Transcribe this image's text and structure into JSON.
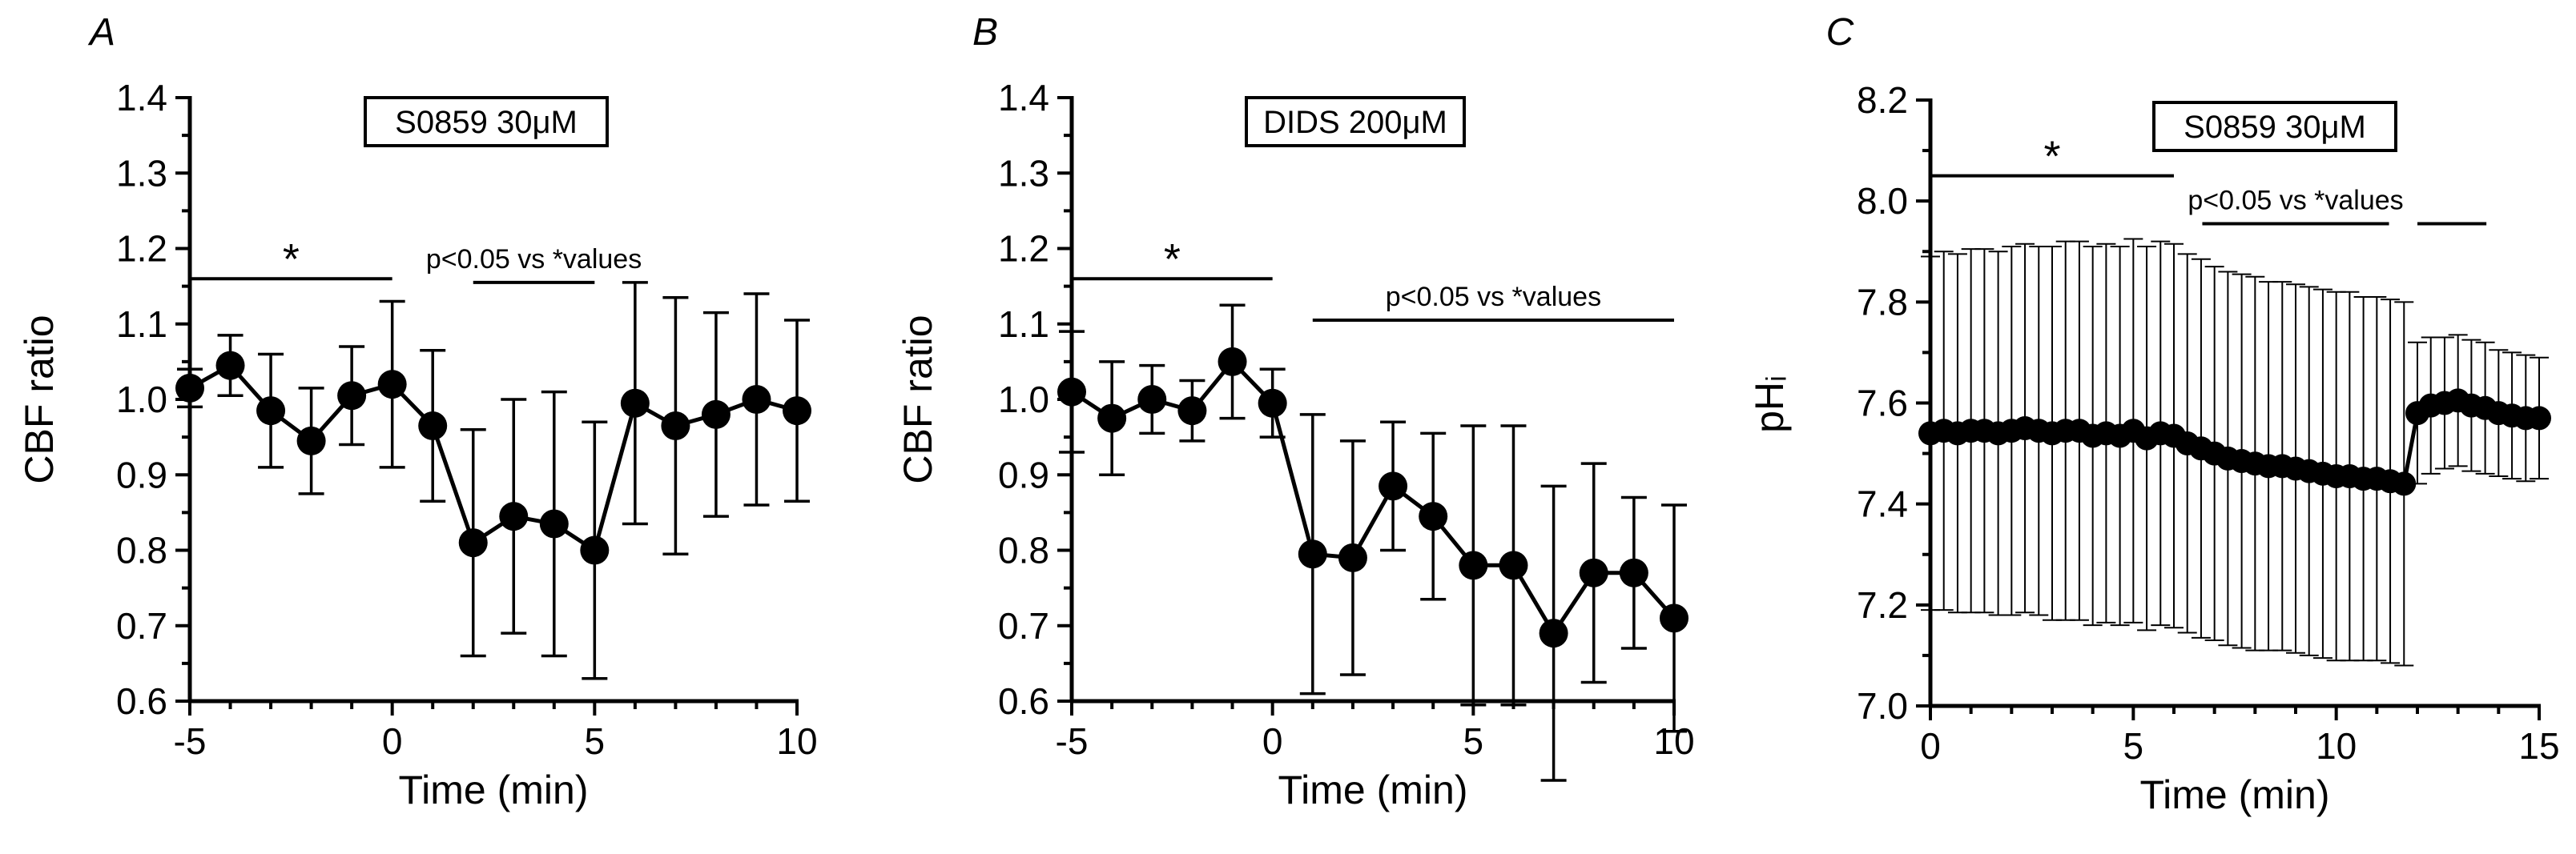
{
  "chart_data": [
    {
      "type": "line",
      "panel_label": "A",
      "title": "S0859 30μM",
      "xlabel": "Time (min)",
      "ylabel": "CBF ratio",
      "xlim": [
        -5,
        10
      ],
      "ylim": [
        0.6,
        1.4
      ],
      "xticks": [
        -5,
        0,
        5,
        10
      ],
      "xtick_labels": [
        "-5",
        "0",
        "5",
        "10"
      ],
      "yticks": [
        0.6,
        0.7,
        0.8,
        0.9,
        1.0,
        1.1,
        1.2,
        1.3,
        1.4
      ],
      "ytick_labels": [
        "0.6",
        "0.7",
        "0.8",
        "0.9",
        "1.0",
        "1.1",
        "1.2",
        "1.3",
        "1.4"
      ],
      "series": [
        {
          "name": "CBF ratio",
          "x": [
            -5,
            -4,
            -3,
            -2,
            -1,
            0,
            1,
            2,
            3,
            4,
            5,
            6,
            7,
            8,
            9,
            10
          ],
          "y": [
            1.015,
            1.045,
            0.985,
            0.945,
            1.005,
            1.02,
            0.965,
            0.81,
            0.845,
            0.835,
            0.8,
            0.995,
            0.965,
            0.98,
            1.0,
            0.985
          ],
          "err": [
            0.025,
            0.04,
            0.075,
            0.07,
            0.065,
            0.11,
            0.1,
            0.15,
            0.155,
            0.175,
            0.17,
            0.16,
            0.17,
            0.135,
            0.14,
            0.12
          ]
        }
      ],
      "annotations": [
        {
          "text": "*",
          "x_start": -5,
          "x_end": 0,
          "y": 1.16
        },
        {
          "text": "p<0.05 vs *values",
          "x_start": 2,
          "x_end": 5,
          "y": 1.155
        }
      ]
    },
    {
      "type": "line",
      "panel_label": "B",
      "title": "DIDS 200μM",
      "xlabel": "Time (min)",
      "ylabel": "CBF ratio",
      "xlim": [
        -5,
        10
      ],
      "ylim": [
        0.6,
        1.4
      ],
      "xticks": [
        -5,
        0,
        5,
        10
      ],
      "xtick_labels": [
        "-5",
        "0",
        "5",
        "10"
      ],
      "yticks": [
        0.6,
        0.7,
        0.8,
        0.9,
        1.0,
        1.1,
        1.2,
        1.3,
        1.4
      ],
      "ytick_labels": [
        "0.6",
        "0.7",
        "0.8",
        "0.9",
        "1.0",
        "1.1",
        "1.2",
        "1.3",
        "1.4"
      ],
      "series": [
        {
          "name": "CBF ratio",
          "x": [
            -5,
            -4,
            -3,
            -2,
            -1,
            0,
            1,
            2,
            3,
            4,
            5,
            6,
            7,
            8,
            9,
            10
          ],
          "y": [
            1.01,
            0.975,
            1.0,
            0.985,
            1.05,
            0.995,
            0.795,
            0.79,
            0.885,
            0.845,
            0.78,
            0.78,
            0.69,
            0.77,
            0.77,
            0.71
          ],
          "err": [
            0.08,
            0.075,
            0.045,
            0.04,
            0.075,
            0.045,
            0.185,
            0.155,
            0.085,
            0.11,
            0.185,
            0.185,
            0.195,
            0.145,
            0.1,
            0.15
          ]
        }
      ],
      "annotations": [
        {
          "text": "*",
          "x_start": -5,
          "x_end": 0,
          "y": 1.16
        },
        {
          "text": "p<0.05 vs *values",
          "x_start": 1,
          "x_end": 10,
          "y": 1.105
        }
      ]
    },
    {
      "type": "line",
      "panel_label": "C",
      "title": "S0859 30μM",
      "xlabel": "Time (min)",
      "ylabel": "pHᵢ",
      "xlim": [
        0,
        15
      ],
      "ylim": [
        7.0,
        8.2
      ],
      "xticks": [
        0,
        5,
        10,
        15
      ],
      "xtick_labels": [
        "0",
        "5",
        "10",
        "15"
      ],
      "yticks": [
        7.0,
        7.2,
        7.4,
        7.6,
        7.8,
        8.0,
        8.2
      ],
      "ytick_labels": [
        "7.0",
        "7.2",
        "7.4",
        "7.6",
        "7.8",
        "8.0",
        "8.2"
      ],
      "series": [
        {
          "name": "pHi",
          "x": [
            0,
            0.33,
            0.67,
            1,
            1.33,
            1.67,
            2,
            2.33,
            2.67,
            3,
            3.33,
            3.67,
            4,
            4.33,
            4.67,
            5,
            5.33,
            5.67,
            6,
            6.33,
            6.67,
            7,
            7.33,
            7.67,
            8,
            8.33,
            8.67,
            9,
            9.33,
            9.67,
            10,
            10.33,
            10.67,
            11,
            11.33,
            11.67,
            12,
            12.33,
            12.67,
            13,
            13.33,
            13.67,
            14,
            14.33,
            14.67,
            15
          ],
          "y": [
            7.54,
            7.545,
            7.54,
            7.545,
            7.545,
            7.54,
            7.545,
            7.55,
            7.545,
            7.54,
            7.545,
            7.545,
            7.535,
            7.54,
            7.535,
            7.545,
            7.53,
            7.54,
            7.535,
            7.52,
            7.51,
            7.5,
            7.49,
            7.485,
            7.48,
            7.475,
            7.475,
            7.47,
            7.465,
            7.46,
            7.455,
            7.455,
            7.45,
            7.45,
            7.445,
            7.44,
            7.58,
            7.595,
            7.6,
            7.605,
            7.595,
            7.59,
            7.58,
            7.575,
            7.57,
            7.57
          ],
          "err": [
            0.35,
            0.355,
            0.355,
            0.36,
            0.36,
            0.36,
            0.365,
            0.365,
            0.365,
            0.37,
            0.375,
            0.375,
            0.375,
            0.375,
            0.375,
            0.38,
            0.38,
            0.38,
            0.38,
            0.375,
            0.375,
            0.37,
            0.37,
            0.37,
            0.37,
            0.365,
            0.365,
            0.365,
            0.365,
            0.365,
            0.365,
            0.365,
            0.36,
            0.36,
            0.36,
            0.36,
            0.14,
            0.135,
            0.13,
            0.13,
            0.13,
            0.13,
            0.125,
            0.125,
            0.125,
            0.12
          ]
        }
      ],
      "annotations": [
        {
          "text": "*",
          "x_start": 0,
          "x_end": 6,
          "y": 8.05
        },
        {
          "text": "p<0.05 vs *values",
          "x_start": 6.7,
          "x_end": 11.3,
          "y": 7.955
        },
        {
          "text": "",
          "x_start": 12,
          "x_end": 13.7,
          "y": 7.955
        }
      ]
    }
  ]
}
